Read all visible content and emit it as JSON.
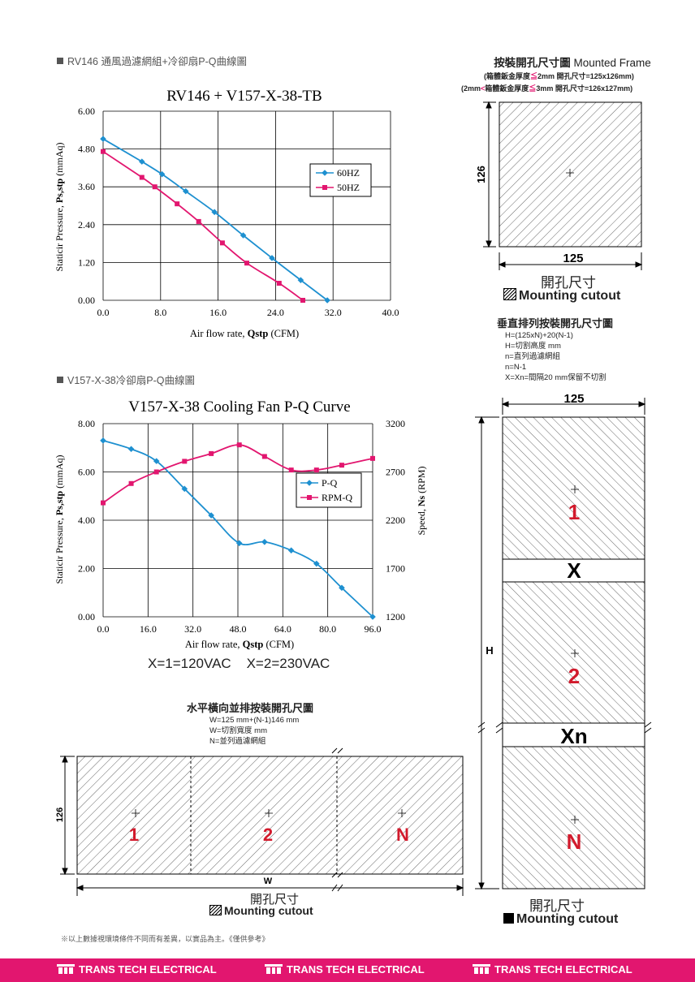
{
  "chart1": {
    "section_title": "RV146 通風過濾網組+冷卻扇P-Q曲線圖",
    "title": "RV146 + V157-X-38-TB",
    "xlabel_pre": "Air flow rate, ",
    "xlabel_bold": "Qstp",
    "xlabel_post": " (CFM)",
    "ylabel_pre": "Staticir Pressure, ",
    "ylabel_bold": "Ps,stp",
    "ylabel_post": " (mmAq)",
    "x_ticks": [
      "0.0",
      "8.0",
      "16.0",
      "24.0",
      "32.0",
      "40.0"
    ],
    "y_ticks": [
      "0.00",
      "1.20",
      "2.40",
      "3.60",
      "4.80",
      "6.00"
    ]
  },
  "chart2": {
    "section_title": "V157-X-38冷卻扇P-Q曲線圖",
    "title": "V157-X-38 Cooling Fan P-Q Curve",
    "xlabel_pre": "Air flow rate, ",
    "xlabel_bold": "Qstp",
    "xlabel_post": " (CFM)",
    "ylabel_pre": "Staticir Pressure, ",
    "ylabel_bold": "Ps,stp",
    "ylabel_post": " (mmAq)",
    "y2label_pre": "Speed, ",
    "y2label_bold": "Ns",
    "y2label_post": " (RPM)",
    "x_ticks": [
      "0.0",
      "16.0",
      "32.0",
      "48.0",
      "64.0",
      "80.0",
      "96.0"
    ],
    "y_ticks": [
      "0.00",
      "2.00",
      "4.00",
      "6.00",
      "8.00"
    ],
    "y2_ticks": [
      "1200",
      "1700",
      "2200",
      "2700",
      "3200"
    ],
    "note": "X=1=120VAC    X=2=230VAC"
  },
  "chart_data": [
    {
      "type": "line",
      "title": "RV146 + V157-X-38-TB",
      "xlabel": "Air flow rate, Qstp (CFM)",
      "ylabel": "Staticir Pressure, Ps,stp (mmAq)",
      "xlim": [
        0,
        40
      ],
      "ylim": [
        0,
        6
      ],
      "grid": true,
      "legend": "right",
      "series": [
        {
          "name": "60HZ",
          "color": "#1e90d0",
          "marker": "diamond",
          "x": [
            0,
            5.4,
            8.2,
            11.5,
            15.5,
            19.5,
            23.5,
            27.5,
            31.2
          ],
          "y": [
            5.12,
            4.4,
            4.0,
            3.46,
            2.8,
            2.06,
            1.34,
            0.64,
            0
          ]
        },
        {
          "name": "50HZ",
          "color": "#e2166f",
          "marker": "square",
          "x": [
            0,
            5.4,
            7.2,
            10.3,
            13.3,
            16.6,
            20.0,
            24.5,
            27.8
          ],
          "y": [
            4.72,
            3.9,
            3.6,
            3.06,
            2.5,
            1.82,
            1.18,
            0.54,
            0
          ]
        }
      ]
    },
    {
      "type": "line",
      "title": "V157-X-38 Cooling Fan P-Q Curve",
      "xlabel": "Air flow rate, Qstp (CFM)",
      "ylabel": "Staticir Pressure, Ps,stp (mmAq)",
      "y2label": "Speed, Ns (RPM)",
      "xlim": [
        0,
        96
      ],
      "ylim": [
        0,
        8
      ],
      "y2lim": [
        1200,
        3200
      ],
      "grid": true,
      "legend": "right",
      "series": [
        {
          "name": "P-Q",
          "axis": "left",
          "color": "#1e90d0",
          "marker": "diamond",
          "x": [
            0,
            10,
            19,
            29,
            38.5,
            48.5,
            57.5,
            67,
            76,
            85,
            96
          ],
          "y": [
            7.3,
            6.95,
            6.45,
            5.3,
            4.2,
            3.05,
            3.1,
            2.75,
            2.2,
            1.2,
            0
          ]
        },
        {
          "name": "RPM-Q",
          "axis": "right",
          "color": "#e2166f",
          "marker": "square",
          "x": [
            0,
            10,
            19,
            29,
            38.5,
            48.5,
            57.5,
            67,
            76,
            85,
            96
          ],
          "y": [
            2380,
            2580,
            2700,
            2810,
            2890,
            2980,
            2860,
            2720,
            2720,
            2770,
            2840
          ]
        }
      ]
    }
  ],
  "frame": {
    "title_cn": "按裝開孔尺寸圖",
    "title_en": "Mounted Frame",
    "line1_a": "(箱體鈑金厚度",
    "line1_le": "≦",
    "line1_b": "2mm  開孔尺寸=125x126mm)",
    "line2_a": "(2mm",
    "line2_lt": "<",
    "line2_b": "箱體鈑金厚度",
    "line2_le": "≦",
    "line2_c": "3mm  開孔尺寸=126x127mm)",
    "dim_h": "126",
    "dim_w": "125",
    "cut_label_cn": "開孔尺寸",
    "cut_label_en": "Mounting cutout"
  },
  "vertical": {
    "title": "垂直排列按裝開孔尺寸圖",
    "formula": [
      "H=(125xN)+20(N-1)",
      "H=切割高度 mm",
      "n=直列過濾網組",
      "n=N-1",
      "X=Xn=間隔20 mm保留不切割"
    ],
    "dim_w": "125",
    "dim_h": "H",
    "labels": [
      "1",
      "2",
      "N"
    ],
    "gap_labels": [
      "X",
      "Xn"
    ],
    "cut_label_cn": "開孔尺寸",
    "cut_label_en": "Mounting cutout"
  },
  "horizontal": {
    "title": "水平橫向並排按裝開孔尺圖",
    "formula": [
      "W=125 mm+(N-1)146 mm",
      "W=切割寬度 mm",
      "N=並列過濾網組"
    ],
    "dim_h": "126",
    "dim_w": "W",
    "labels": [
      "1",
      "2",
      "N"
    ],
    "cut_label_cn": "開孔尺寸",
    "cut_label_en": "Mounting cutout"
  },
  "disclaimer": "※以上數據視環境條件不同而有差異，以實品為主。《僅供參考》",
  "footer": {
    "brand": "TRANS TECH ELECTRICAL"
  },
  "colors": {
    "blue": "#1e90d0",
    "magenta": "#e2166f",
    "cutout_red": "#d21a2c"
  }
}
